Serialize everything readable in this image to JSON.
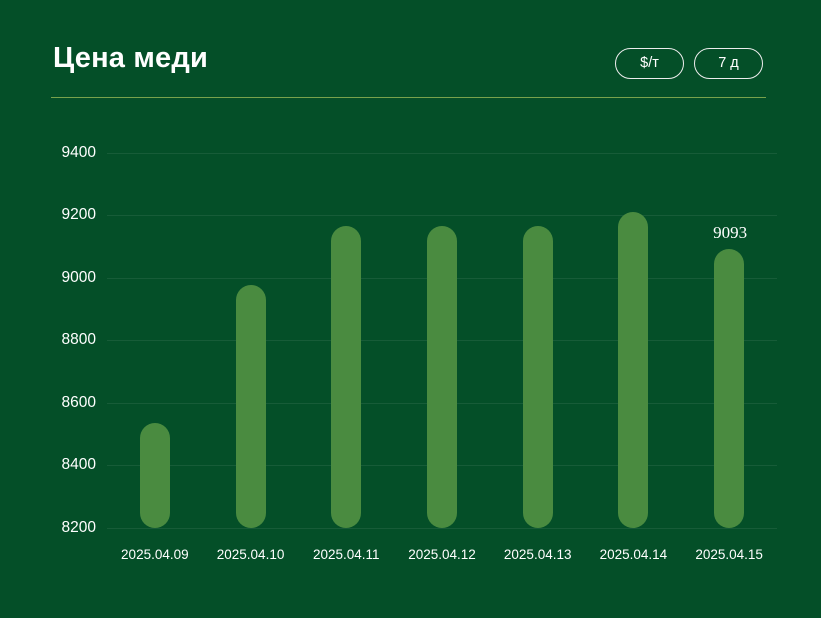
{
  "app": {
    "background_color": "#044f28"
  },
  "header": {
    "title": "Цена меди",
    "buttons": [
      {
        "label": "$/т"
      },
      {
        "label": "7 д"
      }
    ],
    "divider_color": "#78a24c"
  },
  "chart_data": {
    "type": "bar",
    "title": "Цена меди",
    "unit": "$/т",
    "period": "7 д",
    "categories": [
      "2025.04.09",
      "2025.04.10",
      "2025.04.11",
      "2025.04.12",
      "2025.04.13",
      "2025.04.14",
      "2025.04.15"
    ],
    "values": [
      8535,
      8977,
      9166,
      9166,
      9166,
      9212,
      9093
    ],
    "value_labels": [
      null,
      null,
      null,
      null,
      null,
      null,
      "9093"
    ],
    "yticks": [
      9400,
      9200,
      9000,
      8800,
      8600,
      8400,
      8200
    ],
    "ylim": [
      8200,
      9400
    ],
    "grid": true,
    "legend": "none",
    "bar_color": "#4a8b40",
    "grid_color": "rgba(255,255,255,0.08)",
    "text_color": "#ffffff"
  }
}
